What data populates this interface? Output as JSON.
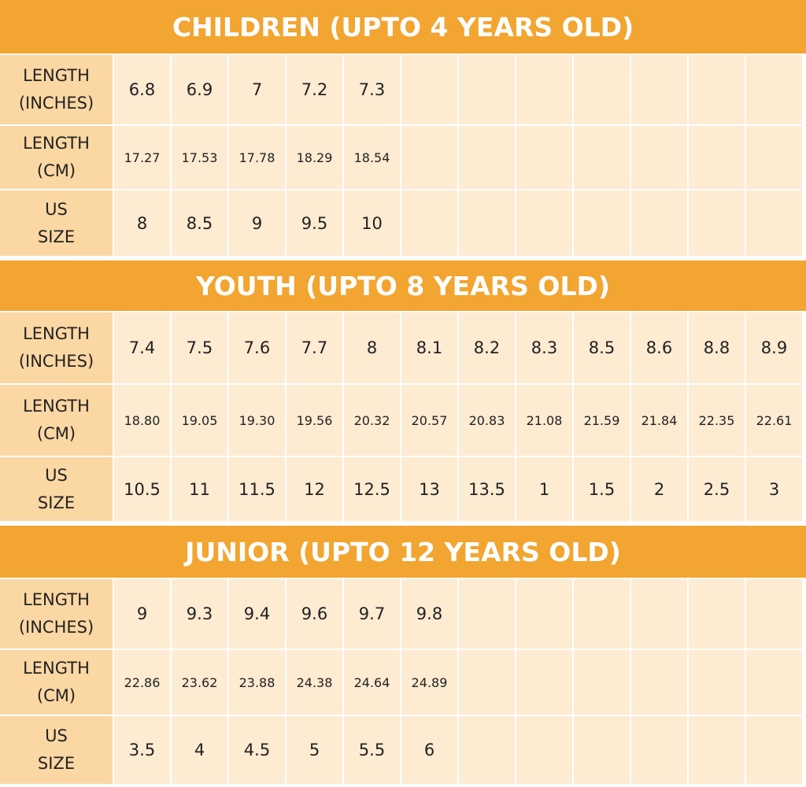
{
  "sections": [
    {
      "title": "CHILDREN (UPTO 4 YEARS OLD)",
      "rows": [
        {
          "label": [
            "LENGTH",
            "(INCHES)"
          ],
          "values": [
            "6.8",
            "6.9",
            "7",
            "7.2",
            "7.3"
          ]
        },
        {
          "label": [
            "LENGTH",
            "(CM)"
          ],
          "values": [
            "17.27",
            "17.53",
            "17.78",
            "18.29",
            "18.54"
          ]
        },
        {
          "label": [
            "US",
            "SIZE"
          ],
          "values": [
            "8",
            "8.5",
            "9",
            "9.5",
            "10"
          ]
        }
      ]
    },
    {
      "title": "YOUTH (UPTO 8 YEARS OLD)",
      "rows": [
        {
          "label": [
            "LENGTH",
            "(INCHES)"
          ],
          "values": [
            "7.4",
            "7.5",
            "7.6",
            "7.7",
            "8",
            "8.1",
            "8.2",
            "8.3",
            "8.5",
            "8.6",
            "8.8",
            "8.9"
          ]
        },
        {
          "label": [
            "LENGTH",
            "(CM)"
          ],
          "values": [
            "18.80",
            "19.05",
            "19.30",
            "19.56",
            "20.32",
            "20.57",
            "20.83",
            "21.08",
            "21.59",
            "21.84",
            "22.35",
            "22.61"
          ]
        },
        {
          "label": [
            "US",
            "SIZE"
          ],
          "values": [
            "10.5",
            "11",
            "11.5",
            "12",
            "12.5",
            "13",
            "13.5",
            "1",
            "1.5",
            "2",
            "2.5",
            "3"
          ]
        }
      ]
    },
    {
      "title": "JUNIOR (UPTO 12 YEARS OLD)",
      "rows": [
        {
          "label": [
            "LENGTH",
            "(INCHES)"
          ],
          "values": [
            "9",
            "9.3",
            "9.4",
            "9.6",
            "9.7",
            "9.8"
          ]
        },
        {
          "label": [
            "LENGTH",
            "(CM)"
          ],
          "values": [
            "22.86",
            "23.62",
            "23.88",
            "24.38",
            "24.64",
            "24.89"
          ]
        },
        {
          "label": [
            "US",
            "SIZE"
          ],
          "values": [
            "3.5",
            "4",
            "4.5",
            "5",
            "5.5",
            "6"
          ]
        }
      ]
    }
  ]
}
